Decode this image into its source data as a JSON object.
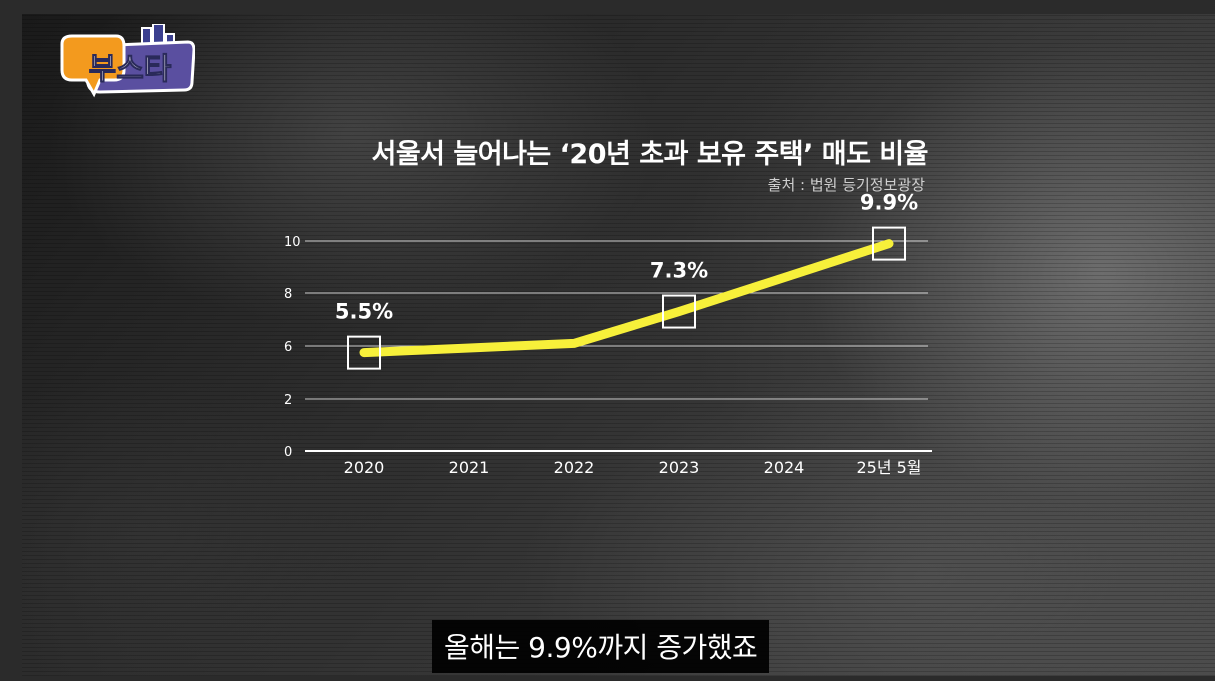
{
  "logo": {
    "text": "부스타"
  },
  "caption": "올해는 9.9%까지 증가했죠",
  "chart_data": {
    "type": "line",
    "title": "서울서 늘어나는 ‘20년 초과 보유 주택’ 매도 비율",
    "source": "출처 : 법원 등기정보광장",
    "categories": [
      "2020",
      "2021",
      "2022",
      "2023",
      "2024",
      "25년 5월"
    ],
    "y_ticks": [
      "0",
      "2",
      "6",
      "8",
      "10"
    ],
    "series": [
      {
        "x": [
          "2020",
          "2022",
          "2023",
          "25년 5월"
        ],
        "values": [
          5.5,
          6.1,
          7.3,
          9.9
        ],
        "labels": [
          "5.5%",
          "",
          "7.3%",
          "9.9%"
        ],
        "color": "#f7f03a"
      }
    ],
    "highlight_points": [
      "2020",
      "2023",
      "25년 5월"
    ],
    "grid": true,
    "legend": "none"
  }
}
